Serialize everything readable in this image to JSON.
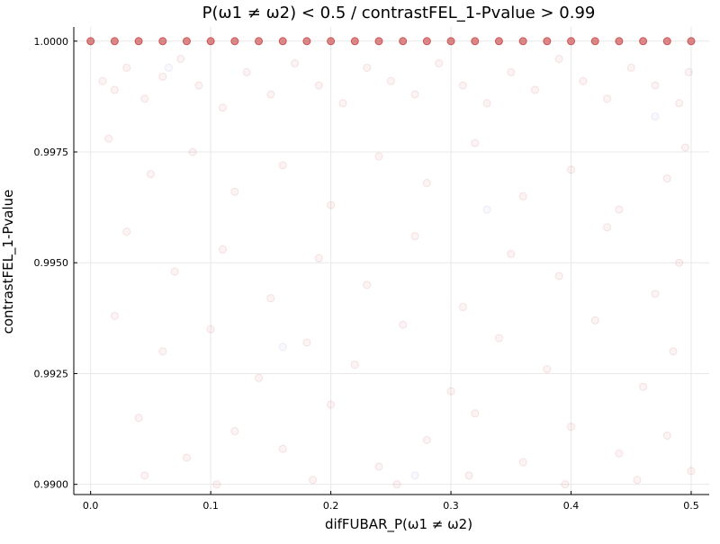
{
  "chart_data": {
    "type": "scatter",
    "title": "P(ω1 ≠ ω2) < 0.5 / contrastFEL_1-Pvalue > 0.99",
    "xlabel": "difFUBAR_P(ω1 ≠ ω2)",
    "ylabel": "contrastFEL_1-Pvalue",
    "xlim": [
      -0.014,
      0.515
    ],
    "ylim": [
      0.98977,
      1.00032
    ],
    "xticks": [
      0.0,
      0.1,
      0.2,
      0.3,
      0.4,
      0.5
    ],
    "xtick_labels": [
      "0.0",
      "0.1",
      "0.2",
      "0.3",
      "0.4",
      "0.5"
    ],
    "yticks": [
      0.99,
      0.9925,
      0.995,
      0.9975,
      1.0
    ],
    "ytick_labels": [
      "0.9900",
      "0.9925",
      "0.9950",
      "0.9975",
      "1.0000"
    ],
    "grid": true,
    "legend": false,
    "colors": {
      "primary": "#c0282a",
      "secondary": "#7070d0"
    },
    "series": [
      {
        "color": "#c0282a",
        "points": [
          [
            0.0,
            1.0
          ],
          [
            0.02,
            1.0
          ],
          [
            0.04,
            1.0
          ],
          [
            0.06,
            1.0
          ],
          [
            0.08,
            1.0
          ],
          [
            0.1,
            1.0
          ],
          [
            0.12,
            1.0
          ],
          [
            0.14,
            1.0
          ],
          [
            0.16,
            1.0
          ],
          [
            0.18,
            1.0
          ],
          [
            0.2,
            1.0
          ],
          [
            0.22,
            1.0
          ],
          [
            0.24,
            1.0
          ],
          [
            0.26,
            1.0
          ],
          [
            0.28,
            1.0
          ],
          [
            0.3,
            1.0
          ],
          [
            0.32,
            1.0
          ],
          [
            0.34,
            1.0
          ],
          [
            0.36,
            1.0
          ],
          [
            0.38,
            1.0
          ],
          [
            0.4,
            1.0
          ],
          [
            0.42,
            1.0
          ],
          [
            0.44,
            1.0
          ],
          [
            0.46,
            1.0
          ],
          [
            0.48,
            1.0
          ],
          [
            0.5,
            1.0
          ],
          [
            0.01,
            0.9991
          ],
          [
            0.02,
            0.9989
          ],
          [
            0.03,
            0.9994
          ],
          [
            0.045,
            0.9987
          ],
          [
            0.06,
            0.9992
          ],
          [
            0.075,
            0.9996
          ],
          [
            0.09,
            0.999
          ],
          [
            0.11,
            0.9985
          ],
          [
            0.13,
            0.9993
          ],
          [
            0.15,
            0.9988
          ],
          [
            0.17,
            0.9995
          ],
          [
            0.19,
            0.999
          ],
          [
            0.21,
            0.9986
          ],
          [
            0.23,
            0.9994
          ],
          [
            0.25,
            0.9991
          ],
          [
            0.27,
            0.9988
          ],
          [
            0.29,
            0.9995
          ],
          [
            0.31,
            0.999
          ],
          [
            0.33,
            0.9986
          ],
          [
            0.35,
            0.9993
          ],
          [
            0.37,
            0.9989
          ],
          [
            0.39,
            0.9996
          ],
          [
            0.41,
            0.9991
          ],
          [
            0.43,
            0.9987
          ],
          [
            0.45,
            0.9994
          ],
          [
            0.47,
            0.999
          ],
          [
            0.49,
            0.9986
          ],
          [
            0.498,
            0.9993
          ],
          [
            0.015,
            0.9978
          ],
          [
            0.05,
            0.997
          ],
          [
            0.085,
            0.9975
          ],
          [
            0.12,
            0.9966
          ],
          [
            0.16,
            0.9972
          ],
          [
            0.2,
            0.9963
          ],
          [
            0.24,
            0.9974
          ],
          [
            0.28,
            0.9968
          ],
          [
            0.32,
            0.9977
          ],
          [
            0.36,
            0.9965
          ],
          [
            0.4,
            0.9971
          ],
          [
            0.44,
            0.9962
          ],
          [
            0.48,
            0.9969
          ],
          [
            0.495,
            0.9976
          ],
          [
            0.03,
            0.9957
          ],
          [
            0.07,
            0.9948
          ],
          [
            0.11,
            0.9953
          ],
          [
            0.15,
            0.9942
          ],
          [
            0.19,
            0.9951
          ],
          [
            0.23,
            0.9945
          ],
          [
            0.27,
            0.9956
          ],
          [
            0.31,
            0.994
          ],
          [
            0.35,
            0.9952
          ],
          [
            0.39,
            0.9947
          ],
          [
            0.43,
            0.9958
          ],
          [
            0.47,
            0.9943
          ],
          [
            0.49,
            0.995
          ],
          [
            0.02,
            0.9938
          ],
          [
            0.06,
            0.993
          ],
          [
            0.1,
            0.9935
          ],
          [
            0.14,
            0.9924
          ],
          [
            0.18,
            0.9932
          ],
          [
            0.22,
            0.9927
          ],
          [
            0.26,
            0.9936
          ],
          [
            0.3,
            0.9921
          ],
          [
            0.34,
            0.9933
          ],
          [
            0.38,
            0.9926
          ],
          [
            0.42,
            0.9937
          ],
          [
            0.46,
            0.9922
          ],
          [
            0.485,
            0.993
          ],
          [
            0.04,
            0.9915
          ],
          [
            0.08,
            0.9906
          ],
          [
            0.12,
            0.9912
          ],
          [
            0.16,
            0.9908
          ],
          [
            0.2,
            0.9918
          ],
          [
            0.24,
            0.9904
          ],
          [
            0.28,
            0.991
          ],
          [
            0.32,
            0.9916
          ],
          [
            0.36,
            0.9905
          ],
          [
            0.4,
            0.9913
          ],
          [
            0.44,
            0.9907
          ],
          [
            0.48,
            0.9911
          ],
          [
            0.045,
            0.9902
          ],
          [
            0.105,
            0.99
          ],
          [
            0.185,
            0.9901
          ],
          [
            0.255,
            0.99
          ],
          [
            0.315,
            0.9902
          ],
          [
            0.395,
            0.99
          ],
          [
            0.455,
            0.9901
          ],
          [
            0.5,
            0.9903
          ]
        ]
      },
      {
        "color": "#7070d0",
        "points": [
          [
            0.065,
            0.9994
          ],
          [
            0.33,
            0.9962
          ],
          [
            0.47,
            0.9983
          ],
          [
            0.16,
            0.9931
          ],
          [
            0.27,
            0.9902
          ]
        ]
      }
    ]
  }
}
